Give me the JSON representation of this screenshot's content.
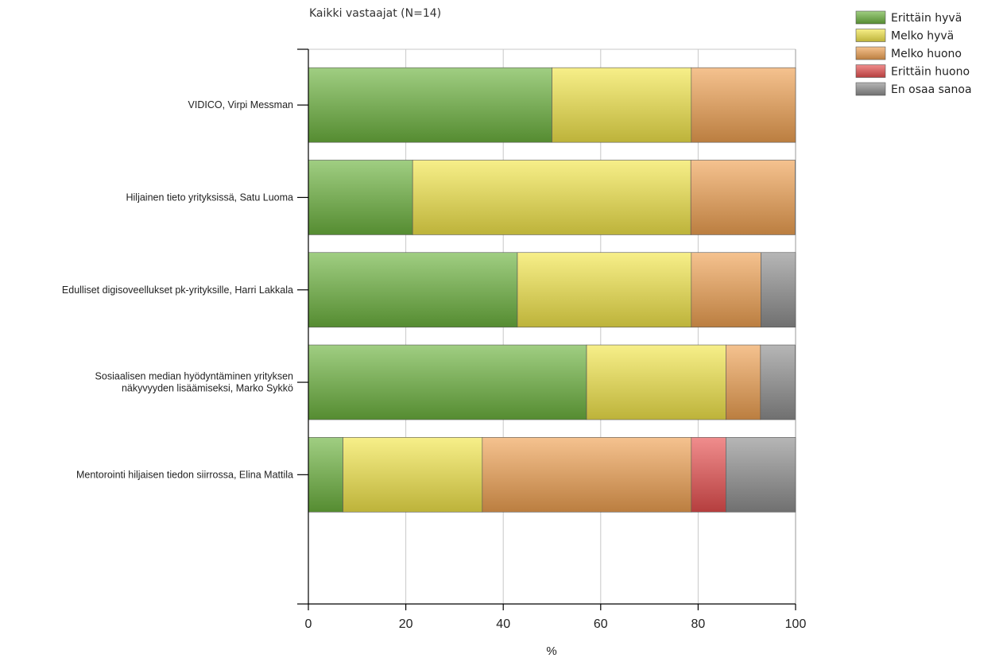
{
  "chart_data": {
    "type": "bar",
    "orientation": "horizontal",
    "stacked": true,
    "title": "Kaikki vastaajat (N=14)",
    "xlabel": "%",
    "ylabel": "",
    "xlim": [
      0,
      100
    ],
    "xticks": [
      "0",
      "20",
      "40",
      "60",
      "80",
      "100"
    ],
    "grid": true,
    "legend_position": "top-right",
    "categories": [
      [
        "VIDICO, Virpi Messman"
      ],
      [
        "Hiljainen tieto yrityksissä, Satu Luoma"
      ],
      [
        "Edulliset digisoveellukset pk-yrityksille, Harri Lakkala"
      ],
      [
        "Sosiaalisen median hyödyntäminen yrityksen",
        "näkyvyyden lisäämiseksi, Marko Sykkö"
      ],
      [
        "Mentorointi hiljaisen tiedon siirrossa, Elina Mattila"
      ]
    ],
    "series": [
      {
        "name": "Erittäin hyvä",
        "color": "#6db33f",
        "values": [
          50.0,
          21.4,
          42.9,
          57.1,
          7.1
        ]
      },
      {
        "name": "Melko hyvä",
        "color": "#f2e64a",
        "values": [
          28.6,
          57.1,
          35.7,
          28.6,
          28.6
        ]
      },
      {
        "name": "Melko huono",
        "color": "#f0a152",
        "values": [
          21.4,
          21.4,
          14.3,
          7.1,
          42.9
        ]
      },
      {
        "name": "Erittäin huono",
        "color": "#e8504f",
        "values": [
          0,
          0,
          0,
          0,
          7.1
        ]
      },
      {
        "name": "En osaa sanoa",
        "color": "#8f8f8f",
        "values": [
          0,
          0,
          7.1,
          7.1,
          14.3
        ]
      }
    ]
  }
}
